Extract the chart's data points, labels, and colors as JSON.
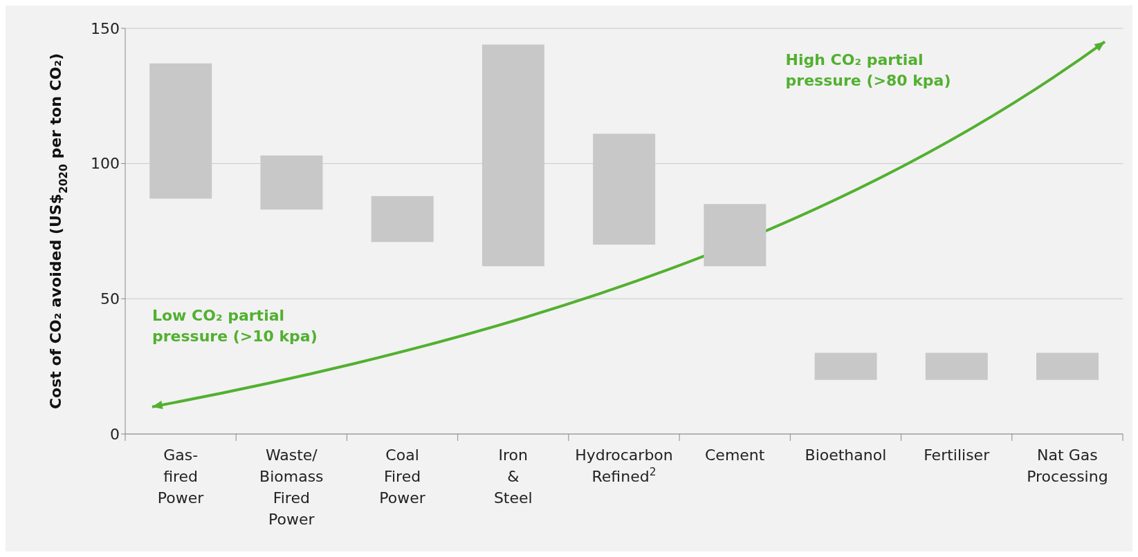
{
  "chart_data": {
    "type": "bar",
    "ylabel": "Cost of CO₂ avoided (US$$_{2020}$ per ton CO₂)",
    "categories": [
      "Gas-\nfired\nPower",
      "Waste/\nBiomass\nFired\nPower",
      "Coal\nFired\nPower",
      "Iron\n&\nSteel",
      "Hydrocarbon\nRefined$^{2}$",
      "Cement",
      "Bioethanol",
      "Fertiliser",
      "Nat Gas\nProcessing"
    ],
    "base": [
      87,
      83,
      71,
      62,
      70,
      62,
      20,
      20,
      20
    ],
    "values": [
      50,
      20,
      17,
      82,
      41,
      23,
      10,
      10,
      10
    ],
    "color": "#c8c8c8",
    "ylim": [
      0,
      150
    ],
    "yticks": [
      0,
      50,
      100,
      150
    ],
    "grid": "y",
    "legend": false,
    "annotations": [
      "Low CO₂ partial\npressure (>10 kpa)",
      "High CO₂ partial\npressure (>80 kpa)"
    ]
  }
}
